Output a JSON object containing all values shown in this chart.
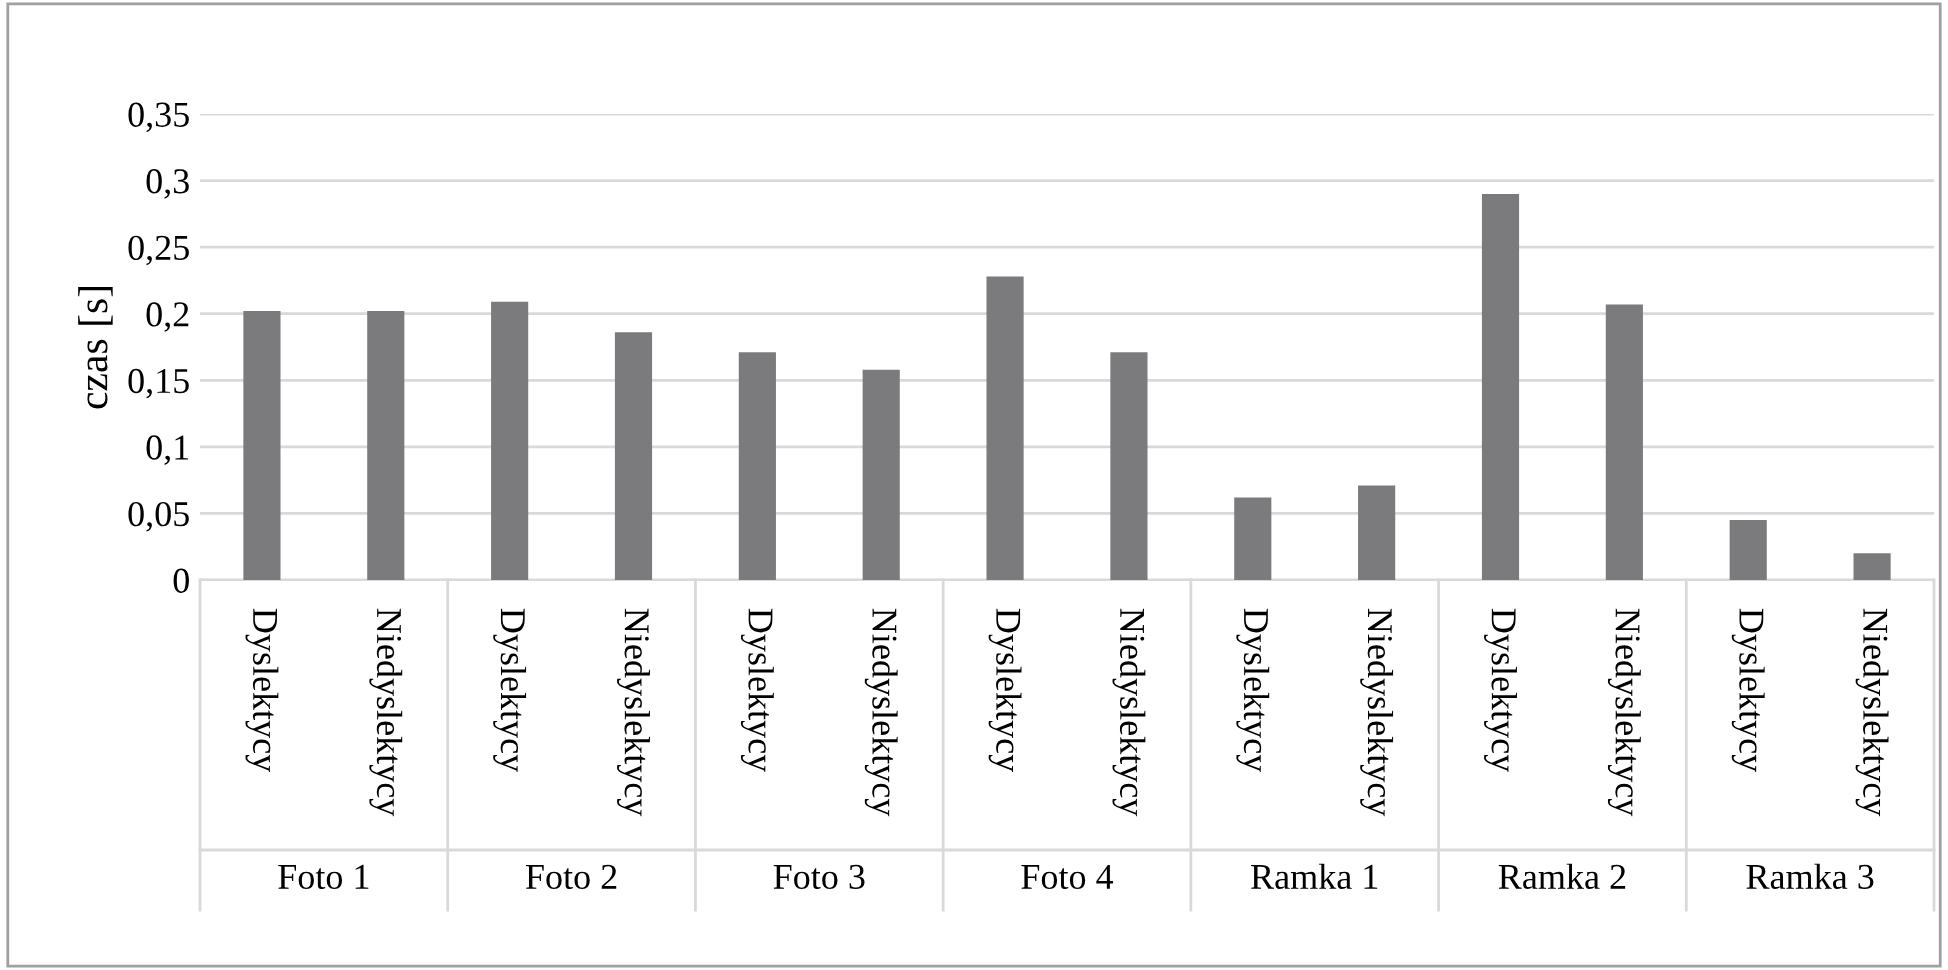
{
  "chart_data": {
    "type": "bar",
    "ylabel": "czas [s]",
    "categories": [
      "Dyslektycy",
      "Niedyslektycy",
      "Dyslektycy",
      "Niedyslektycy",
      "Dyslektycy",
      "Niedyslektycy",
      "Dyslektycy",
      "Niedyslektycy",
      "Dyslektycy",
      "Niedyslektycy",
      "Dyslektycy",
      "Niedyslektycy",
      "Dyslektycy",
      "Niedyslektycy"
    ],
    "values": [
      0.202,
      0.202,
      0.209,
      0.186,
      0.171,
      0.158,
      0.228,
      0.171,
      0.062,
      0.071,
      0.29,
      0.207,
      0.045,
      0.02
    ],
    "color": "#7b7b7d",
    "annotations": [
      "Foto 1",
      "Foto 2",
      "Foto 3",
      "Foto 4",
      "Ramka 1",
      "Ramka 2",
      "Ramka 3"
    ],
    "ylim": [
      0,
      0.35
    ],
    "yticks": [
      {
        "value": 0,
        "label": "0"
      },
      {
        "value": 0.05,
        "label": "0,05"
      },
      {
        "value": 0.1,
        "label": "0,1"
      },
      {
        "value": 0.15,
        "label": "0,15"
      },
      {
        "value": 0.2,
        "label": "0,2"
      },
      {
        "value": 0.25,
        "label": "0,25"
      },
      {
        "value": 0.3,
        "label": "0,3"
      },
      {
        "value": 0.35,
        "label": "0,35"
      }
    ],
    "grid": "y"
  }
}
